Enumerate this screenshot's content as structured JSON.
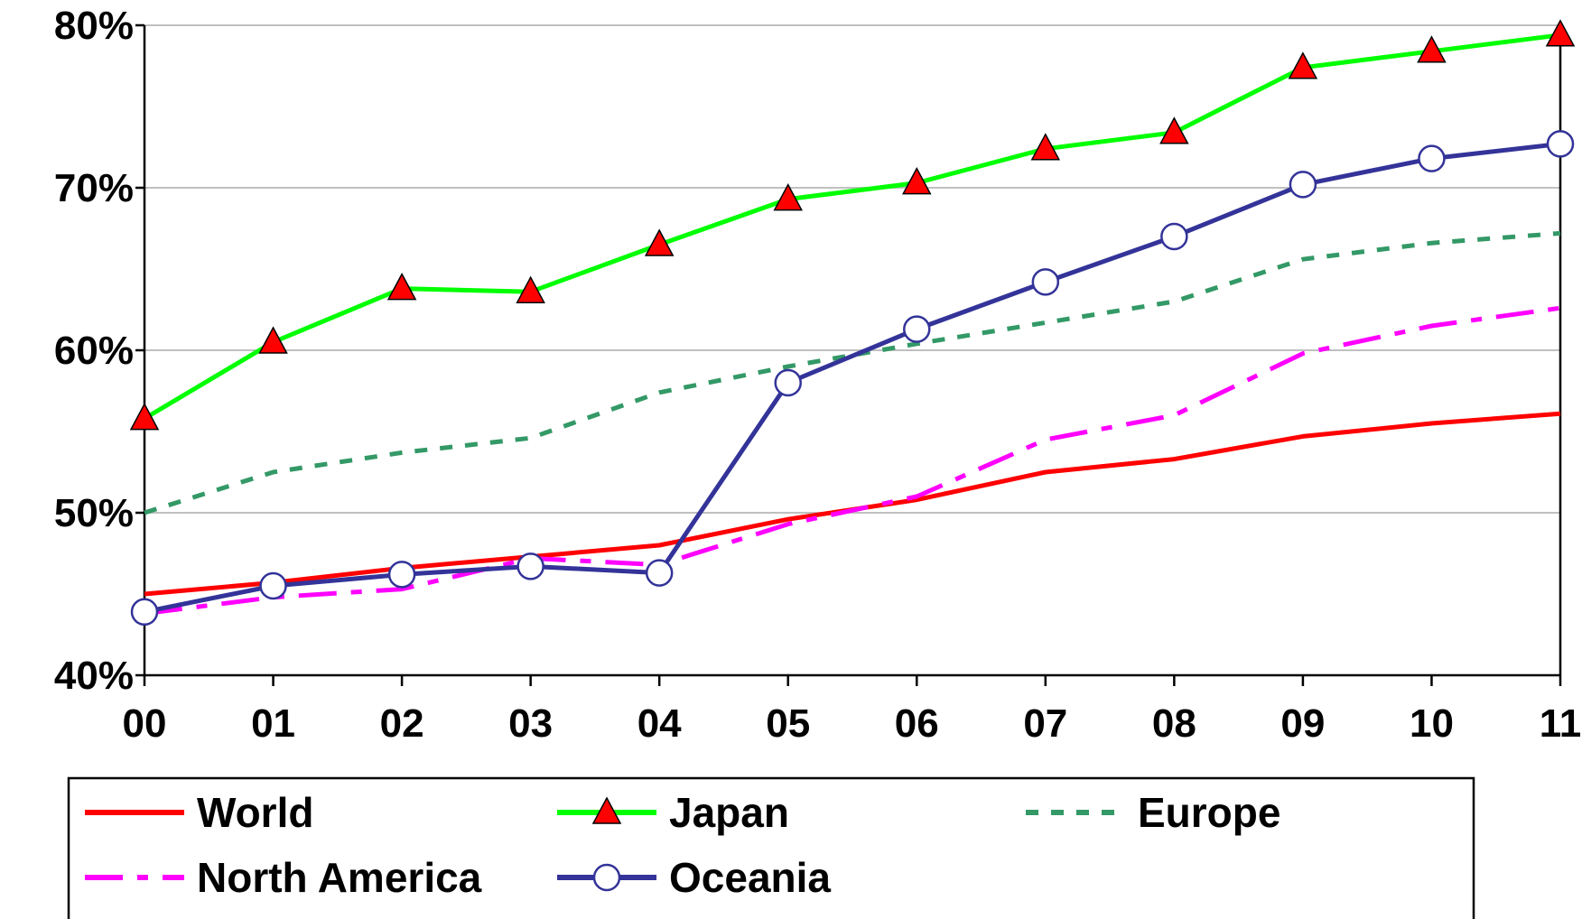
{
  "chart_data": {
    "type": "line",
    "title": "",
    "xlabel": "",
    "ylabel": "",
    "categories": [
      "00",
      "01",
      "02",
      "03",
      "04",
      "05",
      "06",
      "07",
      "08",
      "09",
      "10",
      "11"
    ],
    "ylim": [
      40,
      80
    ],
    "yticks": [
      40,
      50,
      60,
      70,
      80
    ],
    "ytick_labels": [
      "40%",
      "50%",
      "60%",
      "70%",
      "80%"
    ],
    "grid": "horizontal",
    "legend_position": "bottom",
    "series": [
      {
        "name": "World",
        "color": "#ff0000",
        "line_style": "solid",
        "marker": "none",
        "values": [
          45.0,
          45.7,
          46.6,
          47.3,
          48.0,
          49.6,
          50.8,
          52.5,
          53.3,
          54.7,
          55.5,
          56.1
        ]
      },
      {
        "name": "Japan",
        "color": "#00ff00",
        "line_style": "solid",
        "marker": "triangle",
        "marker_color": "#ff0000",
        "values": [
          55.8,
          60.5,
          63.8,
          63.6,
          66.5,
          69.3,
          70.3,
          72.4,
          73.4,
          77.4,
          78.4,
          79.4
        ]
      },
      {
        "name": "Europe",
        "color": "#339966",
        "line_style": "dotted",
        "marker": "none",
        "values": [
          50.0,
          52.5,
          53.7,
          54.6,
          57.4,
          59.0,
          60.4,
          61.7,
          63.0,
          65.6,
          66.6,
          67.2
        ]
      },
      {
        "name": "North America",
        "color": "#ff00ff",
        "line_style": "dash-dot",
        "marker": "none",
        "values": [
          43.8,
          44.8,
          45.3,
          47.2,
          46.8,
          49.3,
          51.0,
          54.5,
          56.0,
          59.8,
          61.5,
          62.6
        ]
      },
      {
        "name": "Oceania",
        "color": "#333399",
        "line_style": "solid",
        "marker": "circle",
        "marker_color": "#ffffff",
        "values": [
          43.9,
          45.5,
          46.2,
          46.7,
          46.3,
          58.0,
          61.3,
          64.2,
          67.0,
          70.2,
          71.8,
          72.7
        ]
      }
    ]
  }
}
